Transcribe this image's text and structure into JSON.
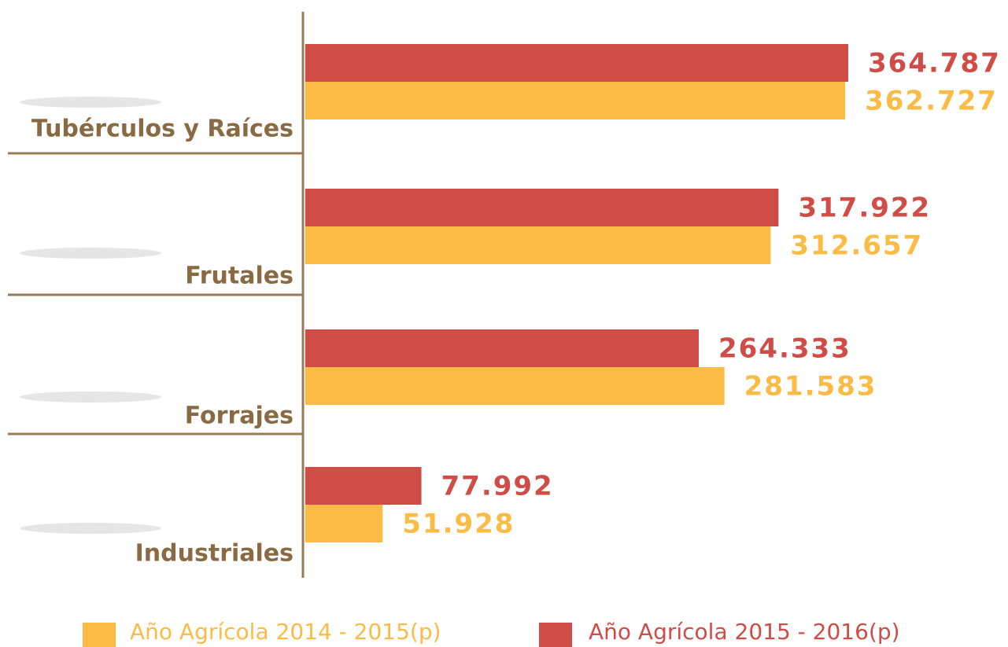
{
  "chart_data": {
    "type": "barh",
    "categories": [
      "Tubérculos y Raíces",
      "Frutales",
      "Forrajes",
      "Industriales"
    ],
    "series": [
      {
        "name": "Año Agrícola 2014 - 2015(p)",
        "color": "#fbbb45",
        "values": [
          362727,
          312657,
          281583,
          51928
        ],
        "value_labels": [
          "362.727",
          "312.657",
          "281.583",
          "51.928"
        ]
      },
      {
        "name": "Año Agrícola 2015 - 2016(p)",
        "color": "#cf4c47",
        "values": [
          364787,
          317922,
          264333,
          77992
        ],
        "value_labels": [
          "364.787",
          "317.922",
          "264.333",
          "77.992"
        ]
      }
    ]
  }
}
